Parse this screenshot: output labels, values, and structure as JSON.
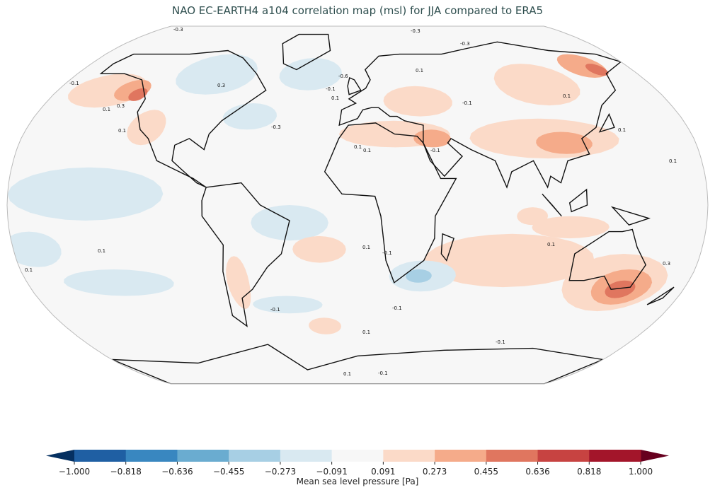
{
  "chart_data": {
    "type": "heatmap",
    "title": "NAO EC-EARTH4 a104 correlation map (msl) for JJA compared to ERA5",
    "projection": "Robinson",
    "colorbar": {
      "label": "Mean sea level pressure [Pa]",
      "ticks": [
        "−1.000",
        "−0.818",
        "−0.636",
        "−0.455",
        "−0.273",
        "−0.091",
        "0.091",
        "0.273",
        "0.455",
        "0.636",
        "0.818",
        "1.000"
      ],
      "range": [
        -1.0,
        1.0
      ],
      "extend": "both",
      "colors": [
        "#1f5fa3",
        "#3987c0",
        "#6aacd0",
        "#a7cfe4",
        "#d9e9f1",
        "#f7f7f7",
        "#fbdac8",
        "#f5ab8a",
        "#e0765f",
        "#c74341",
        "#a3152a"
      ],
      "under_color": "#053061",
      "over_color": "#67001f"
    },
    "contour_labels": [
      "-0.3",
      "-0.3",
      "-0.6",
      "-0.1",
      "0.1",
      "-0.3",
      "0.1",
      "0.3",
      "0.1",
      "0.3",
      "0.1",
      "-0.1",
      "-0.3",
      "0.1",
      "-0.1",
      "0.1",
      "0.1",
      "0.1",
      "0.1",
      "-0.1",
      "0.1",
      "-0.1",
      "-0.1",
      "0.1",
      "0.3",
      "0.1",
      "-0.1",
      "0.1",
      "0.1",
      "-0.1",
      "0.1",
      "-0.1"
    ]
  }
}
